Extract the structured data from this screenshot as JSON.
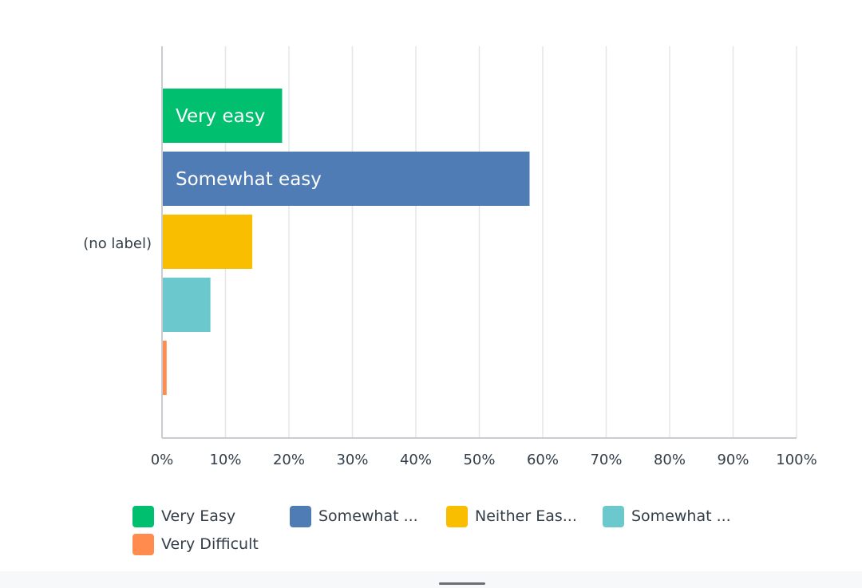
{
  "chart_data": {
    "type": "bar",
    "orientation": "horizontal",
    "categories": [
      "(no label)"
    ],
    "series": [
      {
        "name": "Very Easy",
        "bar_label": "Very easy",
        "values": [
          18.8
        ],
        "color": "#00bf6f"
      },
      {
        "name": "Somewhat ...",
        "bar_label": "Somewhat easy",
        "values": [
          57.8
        ],
        "color": "#507cb6"
      },
      {
        "name": "Neither Eas...",
        "bar_label": "",
        "values": [
          14.1
        ],
        "color": "#f9be00"
      },
      {
        "name": "Somewhat ...",
        "bar_label": "",
        "values": [
          7.5
        ],
        "color": "#6bc8cd"
      },
      {
        "name": "Very Difficult",
        "bar_label": "",
        "values": [
          0.6
        ],
        "color": "#ff8b4f"
      }
    ],
    "xlim": [
      0,
      100
    ],
    "xticks": [
      "0%",
      "10%",
      "20%",
      "30%",
      "40%",
      "50%",
      "60%",
      "70%",
      "80%",
      "90%",
      "100%"
    ],
    "grid": true,
    "legend_position": "bottom"
  }
}
